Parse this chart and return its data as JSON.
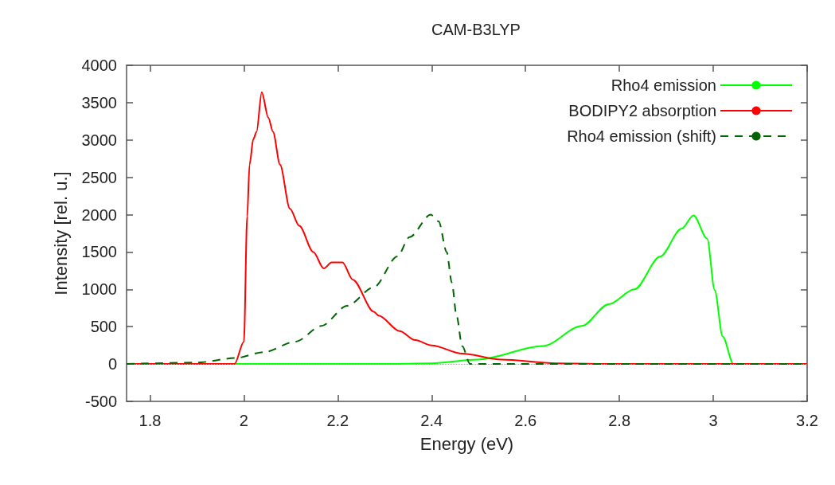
{
  "chart_data": {
    "type": "line",
    "title": "CAM-B3LYP",
    "xlabel": "Energy (eV)",
    "ylabel": "Intensity [rel. u.]",
    "xlim": [
      1.75,
      3.2
    ],
    "xticks": [
      1.8,
      2,
      2.2,
      2.4,
      2.6,
      2.8,
      3,
      3.2
    ],
    "ylim": [
      -500,
      4000
    ],
    "yticks": [
      -500,
      0,
      500,
      1000,
      1500,
      2000,
      2500,
      3000,
      3500,
      4000
    ],
    "grid": false,
    "legend": "top right",
    "marker": "none",
    "ref_lines": [
      {
        "axis": "y",
        "value": 0,
        "color": "#aaaaaa",
        "line_style": "dotted"
      }
    ],
    "series": [
      {
        "name": "Rho4 emission",
        "color": "#00ff00",
        "line_style": "solid",
        "x": [
          1.75,
          2.0,
          2.3,
          2.4,
          2.498,
          2.637,
          2.72,
          2.777,
          2.832,
          2.887,
          2.932,
          2.958,
          2.987,
          3.003,
          3.02,
          3.043,
          3.2
        ],
        "values": [
          0,
          0,
          0,
          10,
          60,
          240,
          510,
          800,
          1000,
          1440,
          1810,
          1990,
          1680,
          990,
          370,
          0,
          0
        ]
      },
      {
        "name": "BODIPY2 absorption",
        "color": "#ff0000",
        "line_style": "solid",
        "x": [
          1.75,
          1.98,
          2.0,
          2.007,
          2.012,
          2.02,
          2.027,
          2.038,
          2.052,
          2.062,
          2.077,
          2.098,
          2.118,
          2.148,
          2.17,
          2.187,
          2.21,
          2.232,
          2.277,
          2.287,
          2.332,
          2.365,
          2.4,
          2.465,
          2.548,
          2.665,
          2.8,
          3.2
        ],
        "values": [
          0,
          0,
          300,
          1980,
          2670,
          3010,
          3110,
          3640,
          3300,
          3110,
          2670,
          2080,
          1850,
          1500,
          1280,
          1360,
          1360,
          1130,
          700,
          650,
          440,
          320,
          250,
          140,
          60,
          10,
          0,
          0
        ]
      },
      {
        "name": "Rho4 emission (shift)",
        "color": "#006400",
        "line_style": "dashed",
        "x": [
          1.75,
          1.9,
          1.982,
          2.043,
          2.11,
          2.165,
          2.22,
          2.277,
          2.327,
          2.353,
          2.398,
          2.415,
          2.432,
          2.443,
          2.453,
          2.465,
          2.482,
          3.2
        ],
        "values": [
          0,
          20,
          80,
          160,
          300,
          510,
          780,
          1030,
          1440,
          1700,
          2000,
          1910,
          1500,
          1090,
          650,
          240,
          0,
          0
        ]
      }
    ]
  }
}
